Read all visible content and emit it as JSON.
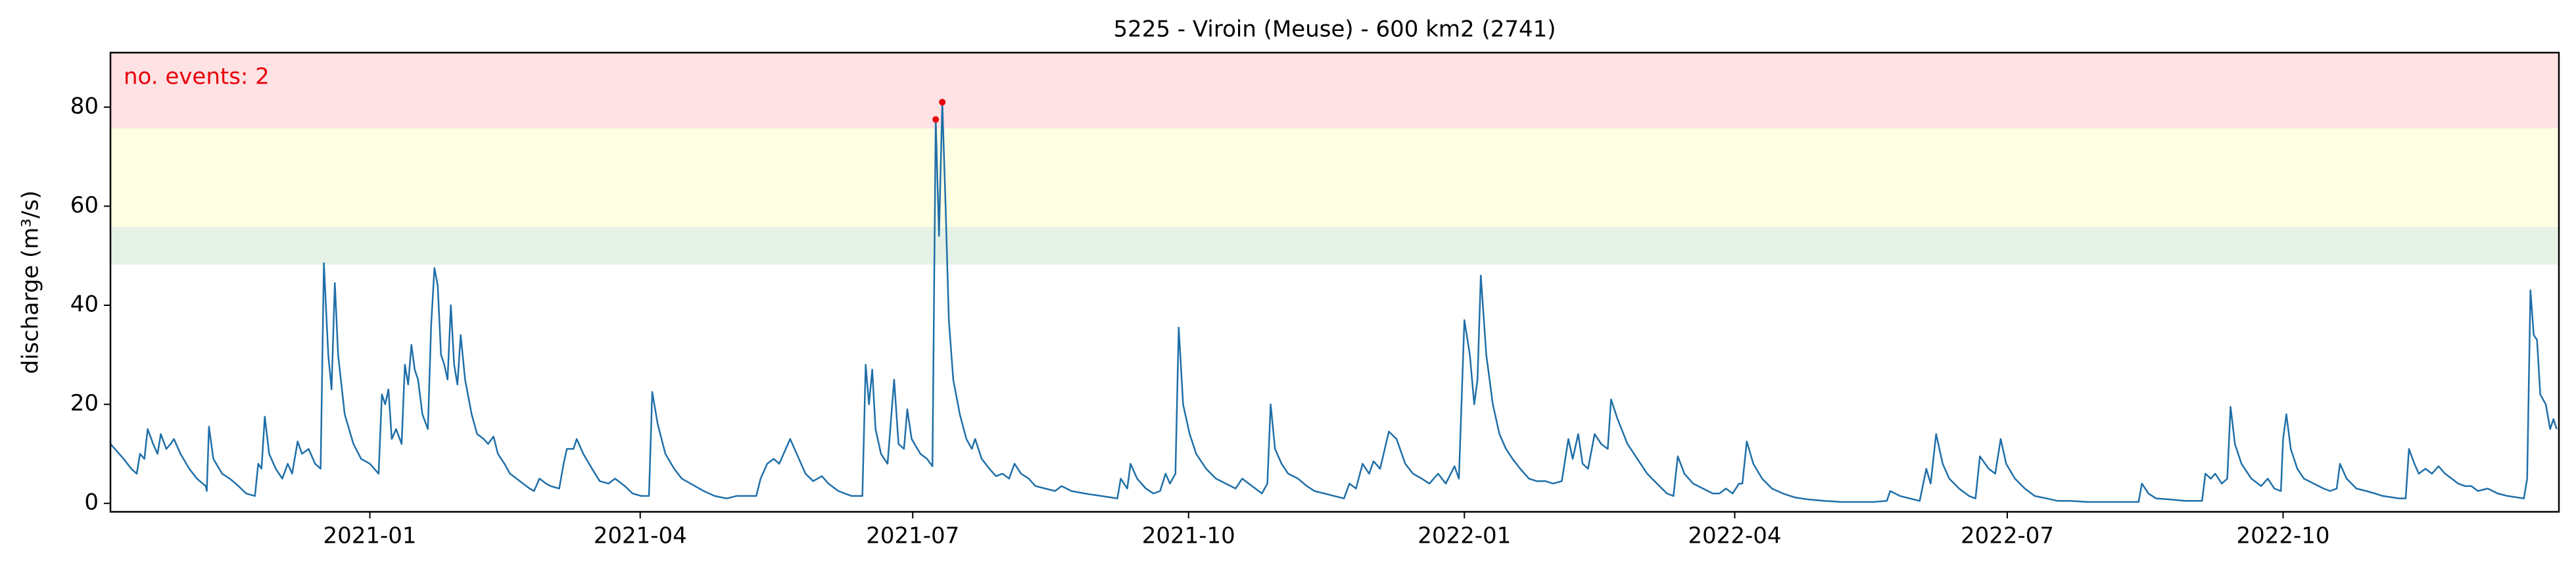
{
  "chart_data": {
    "type": "line",
    "title": "5225 - Viroin (Meuse) - 600 km2 (2741)",
    "y_label": "discharge (m³/s)",
    "annotation": "no. events: 2",
    "annotation_color": "#e8000b",
    "xlim": [
      2020.763,
      2023.0
    ],
    "ylim": [
      -1.7,
      91
    ],
    "xticks": [
      {
        "value": 2021.0,
        "label": "2021-01"
      },
      {
        "value": 2021.247,
        "label": "2021-04"
      },
      {
        "value": 2021.496,
        "label": "2021-07"
      },
      {
        "value": 2021.748,
        "label": "2021-10"
      },
      {
        "value": 2022.0,
        "label": "2022-01"
      },
      {
        "value": 2022.247,
        "label": "2022-04"
      },
      {
        "value": 2022.496,
        "label": "2022-07"
      },
      {
        "value": 2022.748,
        "label": "2022-10"
      }
    ],
    "yticks": [
      0,
      20,
      40,
      60,
      80
    ],
    "bands": [
      {
        "from": 48.2,
        "to": 55.8,
        "color": "#e5f2e5"
      },
      {
        "from": 55.8,
        "to": 75.7,
        "color": "#fefee3"
      },
      {
        "from": 75.7,
        "to": 91,
        "color": "#ffe2e4"
      }
    ],
    "series": [
      {
        "color": "#1f6fa8",
        "x": [
          2020.763,
          2020.775,
          2020.782,
          2020.787,
          2020.79,
          2020.794,
          2020.797,
          2020.802,
          2020.806,
          2020.809,
          2020.814,
          2020.818,
          2020.821,
          2020.827,
          2020.835,
          2020.842,
          2020.85,
          2020.851,
          2020.853,
          2020.857,
          2020.865,
          2020.872,
          2020.88,
          2020.887,
          2020.895,
          2020.898,
          2020.901,
          2020.904,
          2020.908,
          2020.914,
          2020.92,
          2020.925,
          2020.929,
          2020.934,
          2020.938,
          2020.944,
          2020.95,
          2020.955,
          2020.958,
          2020.962,
          2020.965,
          2020.968,
          2020.971,
          2020.977,
          2020.985,
          2020.992,
          2021.0,
          2021.008,
          2021.011,
          2021.014,
          2021.017,
          2021.02,
          2021.024,
          2021.029,
          2021.032,
          2021.035,
          2021.038,
          2021.041,
          2021.044,
          2021.048,
          2021.053,
          2021.056,
          2021.059,
          2021.062,
          2021.065,
          2021.068,
          2021.071,
          2021.074,
          2021.077,
          2021.08,
          2021.083,
          2021.087,
          2021.093,
          2021.098,
          2021.104,
          2021.108,
          2021.113,
          2021.117,
          2021.123,
          2021.128,
          2021.134,
          2021.14,
          2021.146,
          2021.15,
          2021.155,
          2021.161,
          2021.165,
          2021.173,
          2021.177,
          2021.18,
          2021.186,
          2021.189,
          2021.195,
          2021.203,
          2021.21,
          2021.218,
          2021.224,
          2021.233,
          2021.24,
          2021.248,
          2021.255,
          2021.258,
          2021.263,
          2021.27,
          2021.278,
          2021.285,
          2021.293,
          2021.305,
          2021.315,
          2021.326,
          2021.335,
          2021.345,
          2021.353,
          2021.357,
          2021.363,
          2021.369,
          2021.374,
          2021.38,
          2021.384,
          2021.39,
          2021.398,
          2021.405,
          2021.413,
          2021.419,
          2021.428,
          2021.44,
          2021.45,
          2021.453,
          2021.456,
          2021.459,
          2021.462,
          2021.467,
          2021.473,
          2021.479,
          2021.483,
          2021.488,
          2021.491,
          2021.495,
          2021.503,
          2021.509,
          2021.514,
          2021.517,
          2021.52,
          2021.523,
          2021.526,
          2021.529,
          2021.533,
          2021.539,
          2021.545,
          2021.55,
          2021.553,
          2021.559,
          2021.566,
          2021.572,
          2021.578,
          2021.584,
          2021.589,
          2021.595,
          2021.602,
          2021.608,
          2021.617,
          2021.626,
          2021.632,
          2021.641,
          2021.653,
          2021.668,
          2021.683,
          2021.686,
          2021.692,
          2021.695,
          2021.701,
          2021.709,
          2021.716,
          2021.722,
          2021.727,
          2021.731,
          2021.736,
          2021.739,
          2021.743,
          2021.749,
          2021.755,
          2021.764,
          2021.773,
          2021.782,
          2021.791,
          2021.797,
          2021.806,
          2021.815,
          2021.82,
          2021.823,
          2021.827,
          2021.833,
          2021.839,
          2021.848,
          2021.856,
          2021.863,
          2021.872,
          2021.881,
          2021.89,
          2021.895,
          2021.901,
          2021.907,
          2021.913,
          2021.917,
          2021.923,
          2021.931,
          2021.938,
          2021.946,
          2021.953,
          2021.961,
          2021.968,
          2021.976,
          2021.983,
          2021.991,
          2021.995,
          2022.0,
          2022.005,
          2022.009,
          2022.012,
          2022.015,
          2022.02,
          2022.026,
          2022.032,
          2022.038,
          2022.044,
          2022.051,
          2022.059,
          2022.066,
          2022.074,
          2022.081,
          2022.089,
          2022.095,
          2022.099,
          2022.104,
          2022.108,
          2022.113,
          2022.119,
          2022.125,
          2022.131,
          2022.134,
          2022.14,
          2022.149,
          2022.158,
          2022.167,
          2022.176,
          2022.185,
          2022.191,
          2022.195,
          2022.201,
          2022.209,
          2022.218,
          2022.227,
          2022.233,
          2022.239,
          2022.245,
          2022.251,
          2022.254,
          2022.258,
          2022.264,
          2022.272,
          2022.281,
          2022.291,
          2022.302,
          2022.314,
          2022.329,
          2022.344,
          2022.359,
          2022.374,
          2022.386,
          2022.389,
          2022.398,
          2022.407,
          2022.416,
          2022.422,
          2022.426,
          2022.431,
          2022.437,
          2022.443,
          2022.452,
          2022.461,
          2022.467,
          2022.471,
          2022.479,
          2022.485,
          2022.49,
          2022.495,
          2022.503,
          2022.512,
          2022.521,
          2022.532,
          2022.542,
          2022.554,
          2022.569,
          2022.584,
          2022.599,
          2022.616,
          2022.619,
          2022.625,
          2022.632,
          2022.644,
          2022.659,
          2022.674,
          2022.677,
          2022.682,
          2022.686,
          2022.692,
          2022.697,
          2022.7,
          2022.704,
          2022.71,
          2022.719,
          2022.728,
          2022.734,
          2022.74,
          2022.746,
          2022.748,
          2022.751,
          2022.755,
          2022.761,
          2022.767,
          2022.776,
          2022.785,
          2022.791,
          2022.797,
          2022.8,
          2022.806,
          2022.815,
          2022.824,
          2022.832,
          2022.839,
          2022.848,
          2022.854,
          2022.86,
          2022.863,
          2022.868,
          2022.872,
          2022.878,
          2022.884,
          2022.89,
          2022.896,
          2022.902,
          2022.908,
          2022.914,
          2022.92,
          2022.926,
          2022.935,
          2022.944,
          2022.953,
          2022.962,
          2022.968,
          2022.971,
          2022.974,
          2022.977,
          2022.98,
          2022.983,
          2022.988,
          2022.992,
          2022.995,
          2022.998
        ],
        "values": [
          12,
          9,
          7,
          6,
          10,
          9,
          15,
          12,
          10,
          14,
          11,
          12,
          13,
          10,
          7,
          5,
          3.5,
          2.5,
          15.5,
          9,
          6,
          5,
          3.5,
          2,
          1.5,
          8,
          7,
          17.5,
          10,
          7,
          5,
          8,
          6,
          12.5,
          10,
          11,
          8,
          7,
          48.5,
          30,
          23,
          44.5,
          30,
          18,
          12,
          9,
          8,
          6,
          22,
          20,
          23,
          13,
          15,
          12,
          28,
          24,
          32,
          27,
          25,
          18,
          15,
          36,
          47.5,
          44,
          30,
          28,
          25,
          40,
          28,
          24,
          34,
          25,
          18,
          14,
          13,
          12,
          13.5,
          10,
          8,
          6,
          5,
          4,
          3,
          2.5,
          5,
          4,
          3.5,
          3,
          8,
          11,
          11,
          13,
          10,
          7,
          4.5,
          4,
          5,
          3.5,
          2,
          1.5,
          1.5,
          22.5,
          16,
          10,
          7,
          5,
          4,
          2.5,
          1.5,
          1,
          1.5,
          1.5,
          1.5,
          5,
          8,
          9,
          8,
          11,
          13,
          10,
          6,
          4.5,
          5.5,
          4,
          2.5,
          1.5,
          1.5,
          28,
          20,
          27,
          15,
          10,
          8,
          25,
          12,
          11,
          19,
          13,
          10,
          9,
          7.5,
          77.5,
          54,
          81,
          60,
          37,
          25,
          18,
          13,
          11,
          13,
          9,
          7,
          5.5,
          6,
          5,
          8,
          6,
          5,
          3.5,
          3,
          2.5,
          3.5,
          2.5,
          2,
          1.5,
          1,
          5,
          3,
          8,
          5,
          3,
          2,
          2.5,
          6,
          4,
          6,
          35.5,
          20,
          14,
          10,
          7,
          5,
          4,
          3,
          5,
          3.5,
          2,
          4,
          20,
          11,
          8,
          6,
          5,
          3.5,
          2.5,
          2,
          1.5,
          1,
          4,
          3,
          8,
          6,
          8.5,
          7,
          14.5,
          13,
          8,
          6,
          5,
          4,
          6,
          4,
          7.5,
          5,
          37,
          30,
          20,
          25,
          46,
          30,
          20,
          14,
          11,
          9,
          7,
          5,
          4.5,
          4.5,
          4,
          4.5,
          13,
          9,
          14,
          8,
          7,
          14,
          12,
          11,
          21,
          17,
          12,
          9,
          6,
          4,
          2,
          1.5,
          9.5,
          6,
          4,
          3,
          2,
          2,
          3,
          2,
          4,
          4,
          12.5,
          8,
          5,
          3,
          2,
          1.2,
          0.8,
          0.5,
          0.3,
          0.3,
          0.3,
          0.5,
          2.5,
          1.5,
          1,
          0.5,
          7,
          4,
          14,
          8,
          5,
          3,
          1.5,
          1,
          9.5,
          7,
          6,
          13,
          8,
          5,
          3,
          1.5,
          1,
          0.5,
          0.5,
          0.3,
          0.3,
          0.3,
          0.3,
          4,
          2,
          1,
          0.8,
          0.5,
          0.5,
          6,
          5,
          6,
          4,
          5,
          19.5,
          12,
          8,
          5,
          3.5,
          5,
          3,
          2.5,
          13,
          18,
          11,
          7,
          5,
          4,
          3,
          2.5,
          3,
          8,
          5,
          3,
          2.5,
          2,
          1.5,
          1.2,
          1,
          1,
          11,
          8,
          6,
          7,
          6,
          7.5,
          6,
          5,
          4,
          3.5,
          3.5,
          2.5,
          3,
          2,
          1.5,
          1.2,
          1,
          5,
          43,
          34,
          33,
          22,
          20,
          15,
          17,
          15
        ]
      }
    ],
    "events": {
      "color": "#e8000b",
      "x": [
        2021.517,
        2021.523
      ],
      "values": [
        77.5,
        81
      ]
    }
  }
}
